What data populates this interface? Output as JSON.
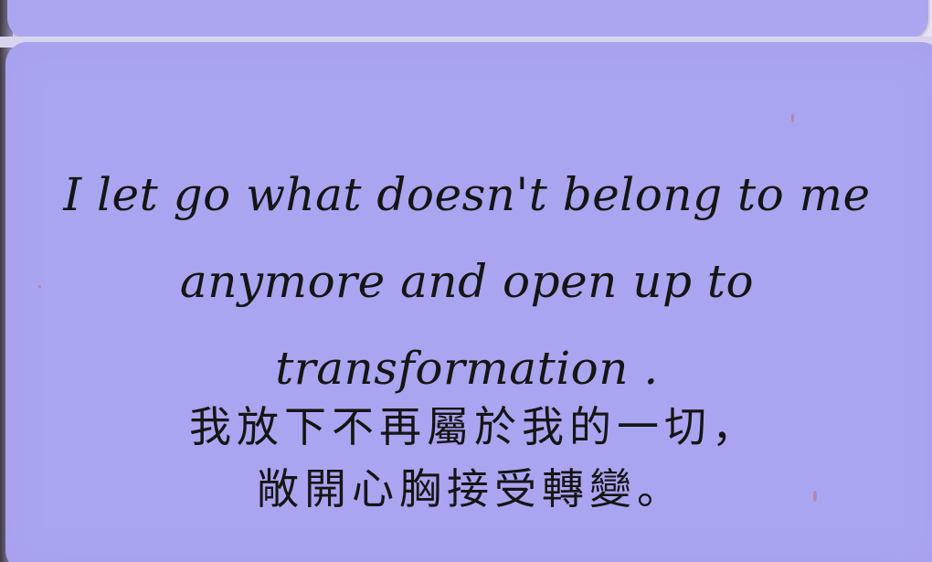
{
  "card": {
    "english_text": "I let go what doesn't belong to me anymore and open up to transformation .",
    "chinese_line_1": "我放下不再屬於我的一切，",
    "chinese_line_2": "敞開心胸接受轉變。",
    "card_color": "#aaa5f0",
    "text_color": "#151515"
  }
}
